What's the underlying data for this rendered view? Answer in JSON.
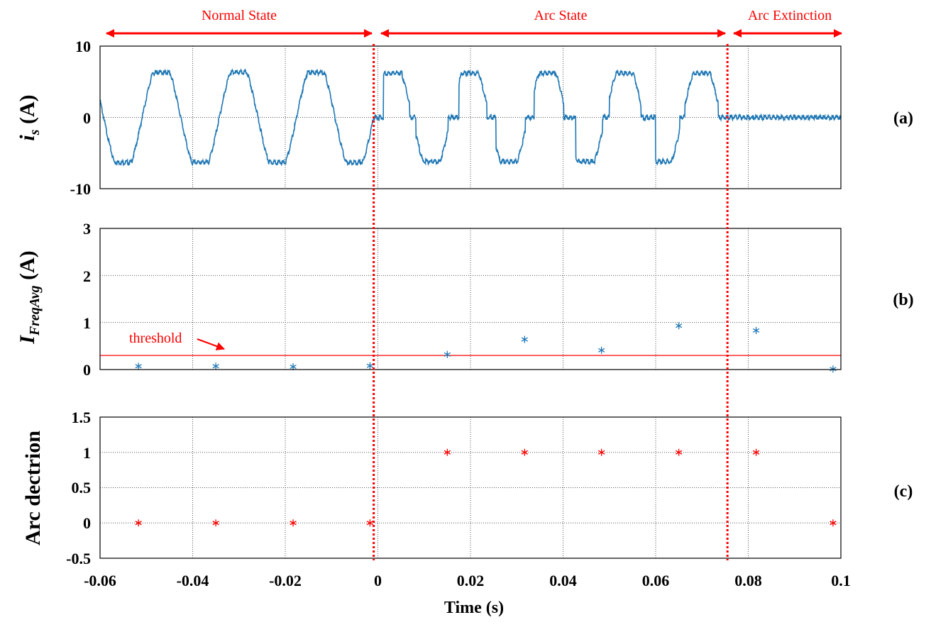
{
  "colors": {
    "signal": "#1f77b4",
    "annotation": "#ff0000",
    "detect": "#ff0000"
  },
  "annotations": {
    "normal_state": "Normal State",
    "arc_state": "Arc State",
    "arc_extinction": "Arc Extinction",
    "threshold": "threshold"
  },
  "x_axis": {
    "label": "Time (s)",
    "ticks": [
      "-0.06",
      "-0.04",
      "-0.02",
      "0",
      "0.02",
      "0.04",
      "0.06",
      "0.08",
      "0.1"
    ]
  },
  "panel_labels": [
    "(a)",
    "(b)",
    "(c)"
  ],
  "chart_data": [
    {
      "type": "line",
      "panel": "(a)",
      "ylabel_main": "i",
      "ylabel_sub": "s",
      "ylabel_unit": " (A)",
      "xlim": [
        -0.06,
        0.1
      ],
      "ylim": [
        -10,
        10
      ],
      "yticks": [
        "10",
        "0",
        "-10"
      ],
      "grid": true,
      "series": [
        {
          "segments": [
            {
              "state": "normal",
              "x_range": [
                -0.06,
                -0.0009
              ],
              "amplitude": 6.3,
              "frequency_hz": 60,
              "phase_zero_crossing": -0.0009
            },
            {
              "state": "arc",
              "x_range": [
                -0.0009,
                0.0745
              ],
              "amplitude": 6.2,
              "frequency_hz": 60,
              "flat_shoulder_level": 0
            },
            {
              "state": "extinction",
              "x_range": [
                0.0745,
                0.1
              ],
              "value": 0
            }
          ]
        }
      ],
      "event_lines_x": [
        -0.0009,
        0.0755
      ]
    },
    {
      "type": "scatter",
      "panel": "(b)",
      "ylabel_main": "I",
      "ylabel_sub": "FreqAvg",
      "ylabel_unit": " (A)",
      "xlim": [
        -0.06,
        0.1
      ],
      "ylim": [
        0,
        3
      ],
      "yticks": [
        "3",
        "2",
        "1",
        "0"
      ],
      "grid": true,
      "threshold": 0.3,
      "x": [
        -0.0517,
        -0.035,
        -0.0183,
        -0.0017,
        0.015,
        0.0317,
        0.0483,
        0.065,
        0.0817,
        0.0983
      ],
      "y": [
        0.07,
        0.07,
        0.06,
        0.08,
        0.32,
        0.64,
        0.41,
        0.93,
        0.83,
        0.01
      ]
    },
    {
      "type": "scatter",
      "panel": "(c)",
      "ylabel": "Arc dectrion",
      "xlim": [
        -0.06,
        0.1
      ],
      "ylim": [
        -0.5,
        1.5
      ],
      "yticks": [
        "1.5",
        "1",
        "0.5",
        "0",
        "-0.5"
      ],
      "grid": true,
      "x": [
        -0.0517,
        -0.035,
        -0.0183,
        -0.0017,
        0.015,
        0.0317,
        0.0483,
        0.065,
        0.0817,
        0.0983
      ],
      "y": [
        0,
        0,
        0,
        0,
        1,
        1,
        1,
        1,
        1,
        0
      ]
    }
  ]
}
